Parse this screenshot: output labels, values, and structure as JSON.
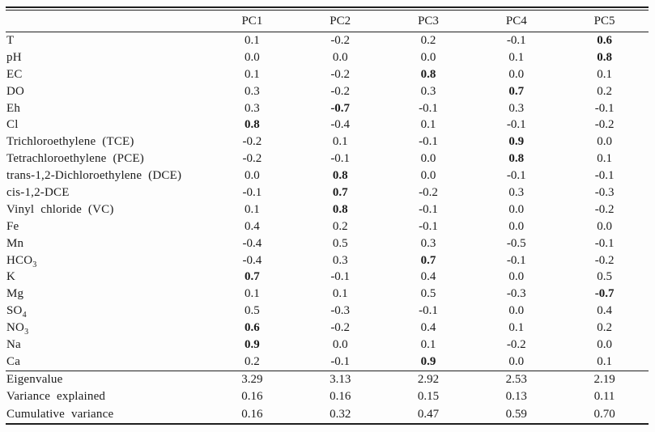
{
  "table": {
    "columns": [
      "",
      "PC1",
      "PC2",
      "PC3",
      "PC4",
      "PC5"
    ],
    "rows": [
      {
        "label": "T",
        "sub": "",
        "values": [
          "0.1",
          "-0.2",
          "0.2",
          "-0.1",
          "0.6"
        ],
        "bold": [
          4
        ]
      },
      {
        "label": "pH",
        "sub": "",
        "values": [
          "0.0",
          "0.0",
          "0.0",
          "0.1",
          "0.8"
        ],
        "bold": [
          4
        ]
      },
      {
        "label": "EC",
        "sub": "",
        "values": [
          "0.1",
          "-0.2",
          "0.8",
          "0.0",
          "0.1"
        ],
        "bold": [
          2
        ]
      },
      {
        "label": "DO",
        "sub": "",
        "values": [
          "0.3",
          "-0.2",
          "0.3",
          "0.7",
          "0.2"
        ],
        "bold": [
          3
        ]
      },
      {
        "label": "Eh",
        "sub": "",
        "values": [
          "0.3",
          "-0.7",
          "-0.1",
          "0.3",
          "-0.1"
        ],
        "bold": [
          1
        ]
      },
      {
        "label": "Cl",
        "sub": "",
        "values": [
          "0.8",
          "-0.4",
          "0.1",
          "-0.1",
          "-0.2"
        ],
        "bold": [
          0
        ]
      },
      {
        "label": "Trichloroethylene (TCE)",
        "sub": "",
        "values": [
          "-0.2",
          "0.1",
          "-0.1",
          "0.9",
          "0.0"
        ],
        "bold": [
          3
        ]
      },
      {
        "label": "Tetrachloroethylene (PCE)",
        "sub": "",
        "values": [
          "-0.2",
          "-0.1",
          "0.0",
          "0.8",
          "0.1"
        ],
        "bold": [
          3
        ]
      },
      {
        "label": "trans-1,2-Dichloroethylene (DCE)",
        "sub": "",
        "values": [
          "0.0",
          "0.8",
          "0.0",
          "-0.1",
          "-0.1"
        ],
        "bold": [
          1
        ]
      },
      {
        "label": "cis-1,2-DCE",
        "sub": "",
        "values": [
          "-0.1",
          "0.7",
          "-0.2",
          "0.3",
          "-0.3"
        ],
        "bold": [
          1
        ]
      },
      {
        "label": "Vinyl chloride (VC)",
        "sub": "",
        "values": [
          "0.1",
          "0.8",
          "-0.1",
          "0.0",
          "-0.2"
        ],
        "bold": [
          1
        ]
      },
      {
        "label": "Fe",
        "sub": "",
        "values": [
          "0.4",
          "0.2",
          "-0.1",
          "0.0",
          "0.0"
        ],
        "bold": []
      },
      {
        "label": "Mn",
        "sub": "",
        "values": [
          "-0.4",
          "0.5",
          "0.3",
          "-0.5",
          "-0.1"
        ],
        "bold": []
      },
      {
        "label": "HCO",
        "sub": "3",
        "values": [
          "-0.4",
          "0.3",
          "0.7",
          "-0.1",
          "-0.2"
        ],
        "bold": [
          2
        ]
      },
      {
        "label": "K",
        "sub": "",
        "values": [
          "0.7",
          "-0.1",
          "0.4",
          "0.0",
          "0.5"
        ],
        "bold": [
          0
        ]
      },
      {
        "label": "Mg",
        "sub": "",
        "values": [
          "0.1",
          "0.1",
          "0.5",
          "-0.3",
          "-0.7"
        ],
        "bold": [
          4
        ]
      },
      {
        "label": "SO",
        "sub": "4",
        "values": [
          "0.5",
          "-0.3",
          "-0.1",
          "0.0",
          "0.4"
        ],
        "bold": []
      },
      {
        "label": "NO",
        "sub": "3",
        "values": [
          "0.6",
          "-0.2",
          "0.4",
          "0.1",
          "0.2"
        ],
        "bold": [
          0
        ]
      },
      {
        "label": "Na",
        "sub": "",
        "values": [
          "0.9",
          "0.0",
          "0.1",
          "-0.2",
          "0.0"
        ],
        "bold": [
          0
        ]
      },
      {
        "label": "Ca",
        "sub": "",
        "values": [
          "0.2",
          "-0.1",
          "0.9",
          "0.0",
          "0.1"
        ],
        "bold": [
          2
        ]
      }
    ],
    "summary_rows": [
      {
        "label": "Eigenvalue",
        "sub": "",
        "values": [
          "3.29",
          "3.13",
          "2.92",
          "2.53",
          "2.19"
        ],
        "bold": []
      },
      {
        "label": "Variance explained",
        "sub": "",
        "values": [
          "0.16",
          "0.16",
          "0.15",
          "0.13",
          "0.11"
        ],
        "bold": []
      },
      {
        "label": "Cumulative variance",
        "sub": "",
        "values": [
          "0.16",
          "0.32",
          "0.47",
          "0.59",
          "0.70"
        ],
        "bold": []
      }
    ]
  }
}
